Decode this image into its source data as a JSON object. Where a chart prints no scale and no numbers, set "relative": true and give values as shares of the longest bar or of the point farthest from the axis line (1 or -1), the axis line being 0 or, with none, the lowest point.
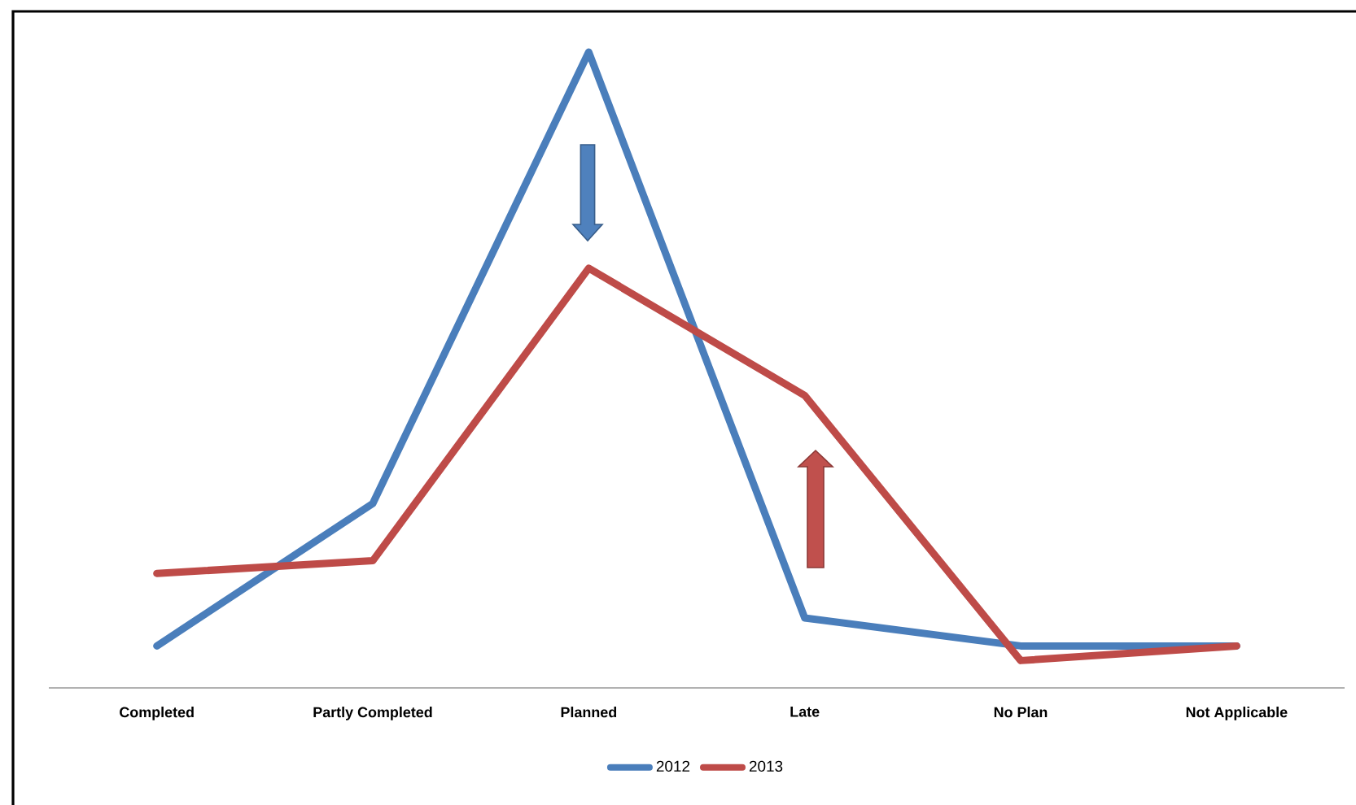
{
  "chart_data": {
    "type": "line",
    "relative": true,
    "categories": [
      "Completed",
      "Partly Completed",
      "Planned",
      "Late",
      "No Plan",
      "Not Applicable"
    ],
    "series": [
      {
        "name": "2012",
        "color": "#4a7ebb",
        "values": [
          0.066,
          0.29,
          1,
          0.11,
          0.066,
          0.066
        ]
      },
      {
        "name": "2013",
        "color": "#be4b48",
        "values": [
          0.18,
          0.2,
          0.66,
          0.46,
          0.043,
          0.066
        ]
      }
    ],
    "legend": "bottom",
    "marker": "none",
    "line_style": "solid"
  }
}
